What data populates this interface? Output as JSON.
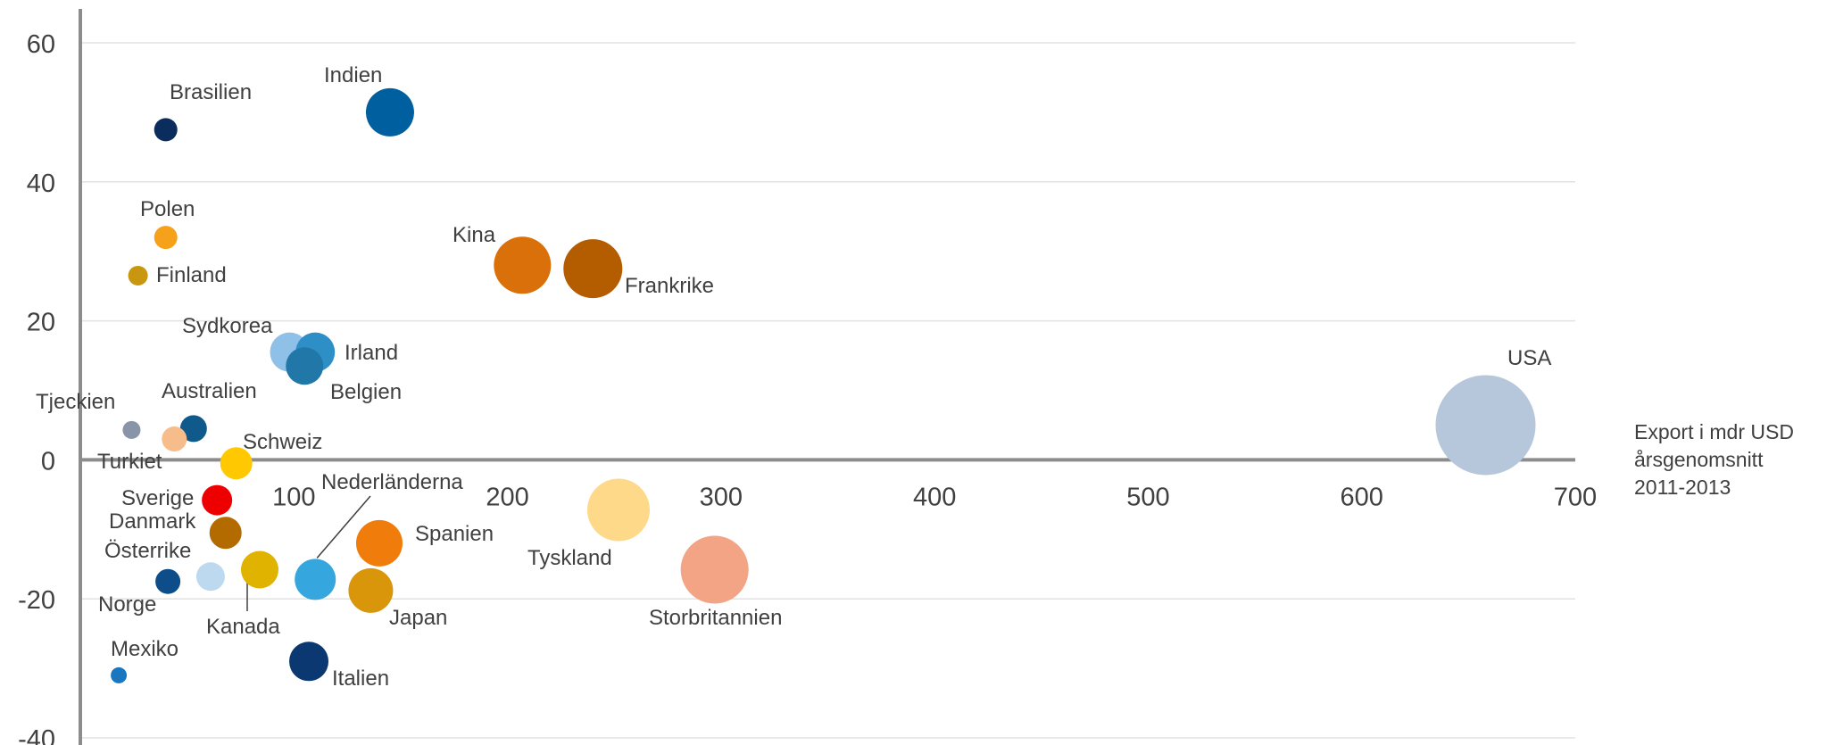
{
  "chart_data": {
    "type": "bubble",
    "xlabel_lines": [
      "Export i mdr USD",
      "årsgenomsnitt",
      "2011-2013"
    ],
    "ylim": [
      -40,
      60
    ],
    "y_ticks": [
      "60",
      "40",
      "20",
      "0",
      "-20",
      "-40"
    ],
    "x_ticks": [
      "100",
      "200",
      "300",
      "400",
      "500",
      "600",
      "700"
    ],
    "grid": true,
    "points": [
      {
        "label": "Brasilien",
        "x": 40,
        "y": 47.5,
        "color": "#0a2d5e"
      },
      {
        "label": "Indien",
        "x": 145,
        "y": 50,
        "color": "#005f9e"
      },
      {
        "label": "Polen",
        "x": 40,
        "y": 32,
        "color": "#f5a21a"
      },
      {
        "label": "Finland",
        "x": 27,
        "y": 26.5,
        "color": "#c9960f"
      },
      {
        "label": "Kina",
        "x": 207,
        "y": 28,
        "color": "#d9700a"
      },
      {
        "label": "Frankrike",
        "x": 240,
        "y": 27.5,
        "color": "#b35c00"
      },
      {
        "label": "Sydkorea",
        "x": 98,
        "y": 15.5,
        "color": "#8ec0e8"
      },
      {
        "label": "Irland",
        "x": 110,
        "y": 15.5,
        "color": "#2e8fc7"
      },
      {
        "label": "Belgien",
        "x": 105,
        "y": 13.5,
        "color": "#2177a8"
      },
      {
        "label": "USA",
        "x": 658,
        "y": 5,
        "color": "#b7c7db"
      },
      {
        "label": "Tjeckien",
        "x": 24,
        "y": 4.3,
        "color": "#8a94a8"
      },
      {
        "label": "Australien",
        "x": 53,
        "y": 4.5,
        "color": "#0f5a8a"
      },
      {
        "label": "Turkiet",
        "x": 44,
        "y": 3,
        "color": "#f6bd8a"
      },
      {
        "label": "Schweiz",
        "x": 73,
        "y": -0.5,
        "color": "#ffc800"
      },
      {
        "label": "Sverige",
        "x": 64,
        "y": -5.8,
        "color": "#ee0000"
      },
      {
        "label": "Danmark",
        "x": 68,
        "y": -10.5,
        "color": "#b36b00"
      },
      {
        "label": "Nederländerna",
        "x": 110,
        "y": -17.2,
        "color": "#36a6de"
      },
      {
        "label": "Spanien",
        "x": 140,
        "y": -12,
        "color": "#ef7c0b"
      },
      {
        "label": "Tyskland",
        "x": 252,
        "y": -7.2,
        "color": "#ffd98a"
      },
      {
        "label": "Storbritannien",
        "x": 297,
        "y": -15.8,
        "color": "#f2a485"
      },
      {
        "label": "Österrike",
        "x": 61,
        "y": -16.8,
        "color": "#bcd9f0"
      },
      {
        "label": "Kanada",
        "x": 84,
        "y": -15.8,
        "color": "#e0b300"
      },
      {
        "label": "Norge",
        "x": 41,
        "y": -17.5,
        "color": "#0d4e8a"
      },
      {
        "label": "Japan",
        "x": 136,
        "y": -18.8,
        "color": "#d9960a"
      },
      {
        "label": "Mexiko",
        "x": 18,
        "y": -31,
        "color": "#1a76bf"
      },
      {
        "label": "Italien",
        "x": 107,
        "y": -29,
        "color": "#0b3870"
      }
    ]
  }
}
